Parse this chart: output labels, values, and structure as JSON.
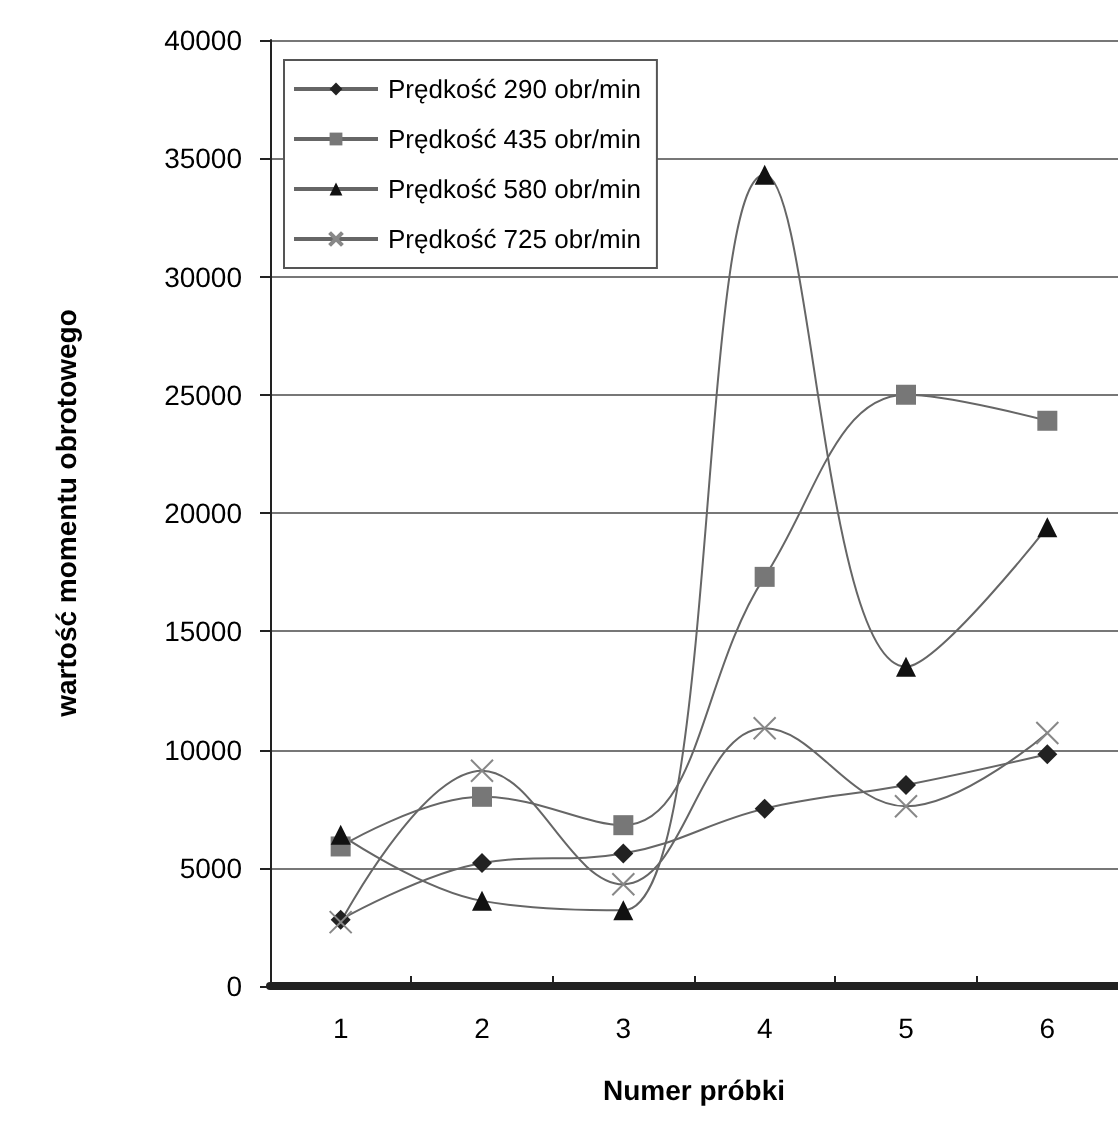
{
  "chart_data": {
    "type": "line",
    "xlabel": "Numer próbki",
    "ylabel": "wartość momentu obrotowego",
    "categories": [
      "1",
      "2",
      "3",
      "4",
      "5",
      "6"
    ],
    "ylim": [
      0,
      40000
    ],
    "yticks": [
      0,
      5000,
      10000,
      15000,
      20000,
      25000,
      30000,
      35000,
      40000
    ],
    "grid": "y",
    "legend": "top left",
    "series": [
      {
        "name": "Prędkość 290 obr/min",
        "color": "#222222",
        "marker": "diamond",
        "values": [
          2800,
          5200,
          5600,
          7500,
          8500,
          9800
        ]
      },
      {
        "name": "Prędkość 435 obr/min",
        "color": "#777777",
        "marker": "square",
        "values": [
          5900,
          8000,
          6800,
          17300,
          25000,
          23900
        ]
      },
      {
        "name": "Prędkość 580 obr/min",
        "color": "#111111",
        "marker": "triangle",
        "values": [
          6400,
          3600,
          3200,
          34300,
          13500,
          19400
        ]
      },
      {
        "name": "Prędkość 725 obr/min",
        "color": "#888888",
        "marker": "cross",
        "values": [
          2700,
          9100,
          4300,
          10900,
          7600,
          10700
        ]
      }
    ]
  }
}
